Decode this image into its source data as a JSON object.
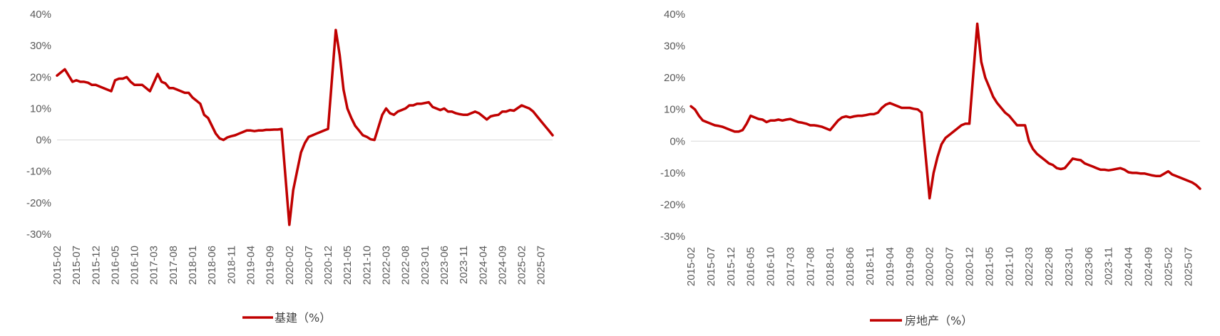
{
  "chart_data": [
    {
      "type": "line",
      "y_ticks": [
        "40%",
        "30%",
        "20%",
        "10%",
        "0%",
        "-10%",
        "-20%",
        "-30%"
      ],
      "ylim": [
        -30,
        40
      ],
      "x_start": "2015-02",
      "x_end": "2025-10",
      "x_labels": [
        "2015-02",
        "2015-07",
        "2015-12",
        "2016-05",
        "2016-10",
        "2017-03",
        "2017-08",
        "2018-01",
        "2018-06",
        "2018-11",
        "2019-04",
        "2019-09",
        "2020-02",
        "2020-07",
        "2020-12",
        "2021-05",
        "2021-10",
        "2022-03",
        "2022-08",
        "2023-01",
        "2023-06",
        "2023-11",
        "2024-04",
        "2024-09",
        "2025-02",
        "2025-07"
      ],
      "series": [
        {
          "name": "基建（%）",
          "color": "#C00000",
          "points": [
            [
              "2015-02",
              20.5
            ],
            [
              "2015-04",
              22.5
            ],
            [
              "2015-06",
              18.5
            ],
            [
              "2015-07",
              19.0
            ],
            [
              "2015-08",
              18.5
            ],
            [
              "2015-09",
              18.5
            ],
            [
              "2015-10",
              18.2
            ],
            [
              "2015-11",
              17.5
            ],
            [
              "2015-12",
              17.5
            ],
            [
              "2016-01",
              17.0
            ],
            [
              "2016-02",
              16.5
            ],
            [
              "2016-04",
              15.5
            ],
            [
              "2016-05",
              19.0
            ],
            [
              "2016-06",
              19.5
            ],
            [
              "2016-07",
              19.5
            ],
            [
              "2016-08",
              20.0
            ],
            [
              "2016-09",
              18.5
            ],
            [
              "2016-10",
              17.5
            ],
            [
              "2016-11",
              17.5
            ],
            [
              "2016-12",
              17.5
            ],
            [
              "2017-02",
              15.5
            ],
            [
              "2017-04",
              21.0
            ],
            [
              "2017-05",
              18.5
            ],
            [
              "2017-06",
              18.0
            ],
            [
              "2017-07",
              16.5
            ],
            [
              "2017-08",
              16.5
            ],
            [
              "2017-09",
              16.0
            ],
            [
              "2017-10",
              15.5
            ],
            [
              "2017-11",
              15.0
            ],
            [
              "2017-12",
              15.0
            ],
            [
              "2018-01",
              13.5
            ],
            [
              "2018-02",
              12.5
            ],
            [
              "2018-03",
              11.5
            ],
            [
              "2018-04",
              8.0
            ],
            [
              "2018-05",
              7.0
            ],
            [
              "2018-06",
              4.5
            ],
            [
              "2018-07",
              2.0
            ],
            [
              "2018-08",
              0.5
            ],
            [
              "2018-09",
              0.0
            ],
            [
              "2018-10",
              0.8
            ],
            [
              "2018-11",
              1.2
            ],
            [
              "2018-12",
              1.5
            ],
            [
              "2019-01",
              2.0
            ],
            [
              "2019-02",
              2.5
            ],
            [
              "2019-03",
              3.0
            ],
            [
              "2019-04",
              3.0
            ],
            [
              "2019-05",
              2.8
            ],
            [
              "2019-06",
              3.0
            ],
            [
              "2019-07",
              3.0
            ],
            [
              "2019-08",
              3.2
            ],
            [
              "2019-09",
              3.2
            ],
            [
              "2019-10",
              3.3
            ],
            [
              "2019-11",
              3.3
            ],
            [
              "2019-12",
              3.5
            ],
            [
              "2020-02",
              -27.0
            ],
            [
              "2020-03",
              -16.0
            ],
            [
              "2020-04",
              -10.0
            ],
            [
              "2020-05",
              -4.0
            ],
            [
              "2020-06",
              -1.0
            ],
            [
              "2020-07",
              1.0
            ],
            [
              "2020-08",
              1.5
            ],
            [
              "2020-09",
              2.0
            ],
            [
              "2020-10",
              2.5
            ],
            [
              "2020-11",
              3.0
            ],
            [
              "2020-12",
              3.5
            ],
            [
              "2021-02",
              35.0
            ],
            [
              "2021-03",
              27.0
            ],
            [
              "2021-04",
              16.0
            ],
            [
              "2021-05",
              10.0
            ],
            [
              "2021-06",
              7.0
            ],
            [
              "2021-07",
              4.5
            ],
            [
              "2021-08",
              3.0
            ],
            [
              "2021-09",
              1.5
            ],
            [
              "2021-10",
              1.0
            ],
            [
              "2021-11",
              0.2
            ],
            [
              "2021-12",
              0.0
            ],
            [
              "2022-02",
              8.0
            ],
            [
              "2022-03",
              10.0
            ],
            [
              "2022-04",
              8.5
            ],
            [
              "2022-05",
              8.0
            ],
            [
              "2022-06",
              9.0
            ],
            [
              "2022-07",
              9.5
            ],
            [
              "2022-08",
              10.0
            ],
            [
              "2022-09",
              11.0
            ],
            [
              "2022-10",
              11.0
            ],
            [
              "2022-11",
              11.5
            ],
            [
              "2022-12",
              11.5
            ],
            [
              "2023-02",
              12.0
            ],
            [
              "2023-03",
              10.5
            ],
            [
              "2023-04",
              10.0
            ],
            [
              "2023-05",
              9.5
            ],
            [
              "2023-06",
              10.0
            ],
            [
              "2023-07",
              9.0
            ],
            [
              "2023-08",
              9.0
            ],
            [
              "2023-09",
              8.5
            ],
            [
              "2023-10",
              8.2
            ],
            [
              "2023-11",
              8.0
            ],
            [
              "2023-12",
              8.0
            ],
            [
              "2024-02",
              9.0
            ],
            [
              "2024-03",
              8.5
            ],
            [
              "2024-04",
              7.5
            ],
            [
              "2024-05",
              6.5
            ],
            [
              "2024-06",
              7.5
            ],
            [
              "2024-07",
              7.8
            ],
            [
              "2024-08",
              8.0
            ],
            [
              "2024-09",
              9.0
            ],
            [
              "2024-10",
              9.0
            ],
            [
              "2024-11",
              9.5
            ],
            [
              "2024-12",
              9.3
            ],
            [
              "2025-02",
              11.0
            ],
            [
              "2025-03",
              10.5
            ],
            [
              "2025-04",
              10.0
            ],
            [
              "2025-05",
              9.0
            ],
            [
              "2025-06",
              7.5
            ],
            [
              "2025-07",
              6.0
            ],
            [
              "2025-08",
              4.5
            ],
            [
              "2025-09",
              3.0
            ],
            [
              "2025-10",
              1.5
            ]
          ]
        }
      ],
      "legend_position": "bottom",
      "grid": false
    },
    {
      "type": "line",
      "y_ticks": [
        "40%",
        "30%",
        "20%",
        "10%",
        "0%",
        "-10%",
        "-20%",
        "-30%"
      ],
      "ylim": [
        -30,
        40
      ],
      "x_start": "2015-02",
      "x_end": "2025-10",
      "x_labels": [
        "2015-02",
        "2015-07",
        "2015-12",
        "2016-05",
        "2016-10",
        "2017-03",
        "2017-08",
        "2018-01",
        "2018-06",
        "2018-11",
        "2019-04",
        "2019-09",
        "2020-02",
        "2020-07",
        "2020-12",
        "2021-05",
        "2021-10",
        "2022-03",
        "2022-08",
        "2023-01",
        "2023-06",
        "2023-11",
        "2024-04",
        "2024-09",
        "2025-02",
        "2025-07"
      ],
      "series": [
        {
          "name": "房地产（%）",
          "color": "#C00000",
          "points": [
            [
              "2015-02",
              11.0
            ],
            [
              "2015-03",
              10.0
            ],
            [
              "2015-04",
              8.0
            ],
            [
              "2015-05",
              6.5
            ],
            [
              "2015-06",
              6.0
            ],
            [
              "2015-07",
              5.5
            ],
            [
              "2015-08",
              5.0
            ],
            [
              "2015-09",
              4.8
            ],
            [
              "2015-10",
              4.5
            ],
            [
              "2015-11",
              4.0
            ],
            [
              "2015-12",
              3.5
            ],
            [
              "2016-01",
              3.0
            ],
            [
              "2016-02",
              3.0
            ],
            [
              "2016-03",
              3.5
            ],
            [
              "2016-04",
              5.5
            ],
            [
              "2016-05",
              8.0
            ],
            [
              "2016-06",
              7.5
            ],
            [
              "2016-07",
              7.0
            ],
            [
              "2016-08",
              6.8
            ],
            [
              "2016-09",
              6.0
            ],
            [
              "2016-10",
              6.5
            ],
            [
              "2016-11",
              6.5
            ],
            [
              "2016-12",
              6.8
            ],
            [
              "2017-01",
              6.5
            ],
            [
              "2017-02",
              6.8
            ],
            [
              "2017-03",
              7.0
            ],
            [
              "2017-04",
              6.5
            ],
            [
              "2017-05",
              6.0
            ],
            [
              "2017-06",
              5.8
            ],
            [
              "2017-07",
              5.5
            ],
            [
              "2017-08",
              5.0
            ],
            [
              "2017-09",
              5.0
            ],
            [
              "2017-10",
              4.8
            ],
            [
              "2017-11",
              4.5
            ],
            [
              "2017-12",
              4.0
            ],
            [
              "2018-01",
              3.5
            ],
            [
              "2018-02",
              5.0
            ],
            [
              "2018-03",
              6.5
            ],
            [
              "2018-04",
              7.5
            ],
            [
              "2018-05",
              7.8
            ],
            [
              "2018-06",
              7.5
            ],
            [
              "2018-07",
              7.8
            ],
            [
              "2018-08",
              8.0
            ],
            [
              "2018-09",
              8.0
            ],
            [
              "2018-10",
              8.2
            ],
            [
              "2018-11",
              8.5
            ],
            [
              "2018-12",
              8.5
            ],
            [
              "2019-01",
              9.0
            ],
            [
              "2019-02",
              10.5
            ],
            [
              "2019-03",
              11.5
            ],
            [
              "2019-04",
              12.0
            ],
            [
              "2019-05",
              11.5
            ],
            [
              "2019-06",
              11.0
            ],
            [
              "2019-07",
              10.5
            ],
            [
              "2019-08",
              10.5
            ],
            [
              "2019-09",
              10.5
            ],
            [
              "2019-10",
              10.2
            ],
            [
              "2019-11",
              10.0
            ],
            [
              "2019-12",
              9.0
            ],
            [
              "2020-02",
              -18.0
            ],
            [
              "2020-03",
              -10.0
            ],
            [
              "2020-04",
              -5.0
            ],
            [
              "2020-05",
              -1.0
            ],
            [
              "2020-06",
              1.0
            ],
            [
              "2020-07",
              2.0
            ],
            [
              "2020-08",
              3.0
            ],
            [
              "2020-09",
              4.0
            ],
            [
              "2020-10",
              5.0
            ],
            [
              "2020-11",
              5.5
            ],
            [
              "2020-12",
              5.5
            ],
            [
              "2021-02",
              37.0
            ],
            [
              "2021-03",
              25.0
            ],
            [
              "2021-04",
              20.0
            ],
            [
              "2021-05",
              17.0
            ],
            [
              "2021-06",
              14.0
            ],
            [
              "2021-07",
              12.0
            ],
            [
              "2021-08",
              10.5
            ],
            [
              "2021-09",
              9.0
            ],
            [
              "2021-10",
              8.0
            ],
            [
              "2021-11",
              6.5
            ],
            [
              "2021-12",
              5.0
            ],
            [
              "2022-01",
              5.0
            ],
            [
              "2022-02",
              5.0
            ],
            [
              "2022-03",
              0.0
            ],
            [
              "2022-04",
              -2.5
            ],
            [
              "2022-05",
              -4.0
            ],
            [
              "2022-06",
              -5.0
            ],
            [
              "2022-07",
              -6.0
            ],
            [
              "2022-08",
              -7.0
            ],
            [
              "2022-09",
              -7.5
            ],
            [
              "2022-10",
              -8.5
            ],
            [
              "2022-11",
              -8.8
            ],
            [
              "2022-12",
              -8.5
            ],
            [
              "2023-02",
              -5.5
            ],
            [
              "2023-03",
              -5.8
            ],
            [
              "2023-04",
              -6.0
            ],
            [
              "2023-05",
              -7.0
            ],
            [
              "2023-06",
              -7.5
            ],
            [
              "2023-07",
              -8.0
            ],
            [
              "2023-08",
              -8.5
            ],
            [
              "2023-09",
              -9.0
            ],
            [
              "2023-10",
              -9.0
            ],
            [
              "2023-11",
              -9.2
            ],
            [
              "2023-12",
              -9.0
            ],
            [
              "2024-02",
              -8.5
            ],
            [
              "2024-03",
              -9.0
            ],
            [
              "2024-04",
              -9.8
            ],
            [
              "2024-05",
              -10.0
            ],
            [
              "2024-06",
              -10.0
            ],
            [
              "2024-07",
              -10.2
            ],
            [
              "2024-08",
              -10.2
            ],
            [
              "2024-09",
              -10.5
            ],
            [
              "2024-10",
              -10.8
            ],
            [
              "2024-11",
              -11.0
            ],
            [
              "2024-12",
              -11.0
            ],
            [
              "2025-02",
              -9.5
            ],
            [
              "2025-03",
              -10.5
            ],
            [
              "2025-04",
              -11.0
            ],
            [
              "2025-05",
              -11.5
            ],
            [
              "2025-06",
              -12.0
            ],
            [
              "2025-07",
              -12.5
            ],
            [
              "2025-08",
              -13.0
            ],
            [
              "2025-09",
              -13.8
            ],
            [
              "2025-10",
              -15.0
            ]
          ]
        }
      ],
      "legend_position": "bottom",
      "grid": false
    }
  ]
}
